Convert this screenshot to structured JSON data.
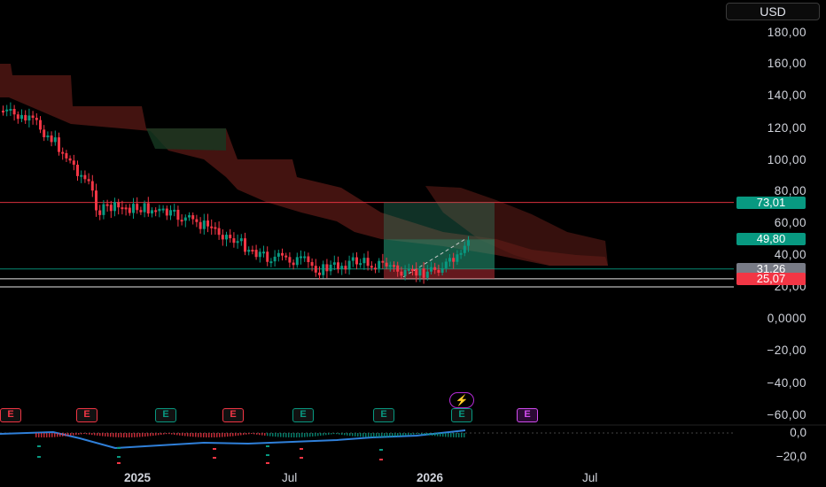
{
  "currency": "USD",
  "chart_data": {
    "type": "candlestick",
    "y_scale": "log",
    "y_ticks": [
      "180,00",
      "160,00",
      "140,00",
      "120,00",
      "100,00",
      "80,00",
      "60,00",
      "40,00",
      "20,00",
      "0,0000",
      "−20,00",
      "−40,00",
      "−60,00"
    ],
    "x_ticks": [
      "2025",
      "Jul",
      "2026",
      "Jul"
    ],
    "x_ticks_bold": [
      "2025",
      "2026"
    ],
    "price_badges": [
      {
        "label": "73,01",
        "value": 73.01,
        "color": "#089981"
      },
      {
        "label": "49,80",
        "value": 49.8,
        "color": "#089981"
      },
      {
        "label": "31,26",
        "value": 31.26,
        "color": "#787b86"
      },
      {
        "label": "25,07",
        "value": 25.07,
        "color": "#f23645"
      }
    ],
    "horizontal_lines": [
      {
        "value": 73.01,
        "color": "#f23645"
      },
      {
        "value": 25.07,
        "color": "#ffffff"
      },
      {
        "value": 20.0,
        "color": "#ffffff"
      },
      {
        "value": 31.26,
        "color": "#089981"
      }
    ],
    "earnings_markers": [
      {
        "label": "E",
        "color": "#f23645"
      },
      {
        "label": "E",
        "color": "#f23645"
      },
      {
        "label": "E",
        "color": "#089981"
      },
      {
        "label": "E",
        "color": "#f23645"
      },
      {
        "label": "E",
        "color": "#089981"
      },
      {
        "label": "E",
        "color": "#089981"
      },
      {
        "label": "E",
        "color": "#089981"
      },
      {
        "label": "E",
        "color": "#d24cf0"
      }
    ],
    "event_icon": "lightning-icon",
    "oscillator": {
      "ticks": [
        "0,0",
        "−20,0"
      ]
    },
    "colors": {
      "up": "#089981",
      "down": "#f23645",
      "cloud_bear": "#5a1a16",
      "cloud_bull": "#173a22"
    }
  }
}
